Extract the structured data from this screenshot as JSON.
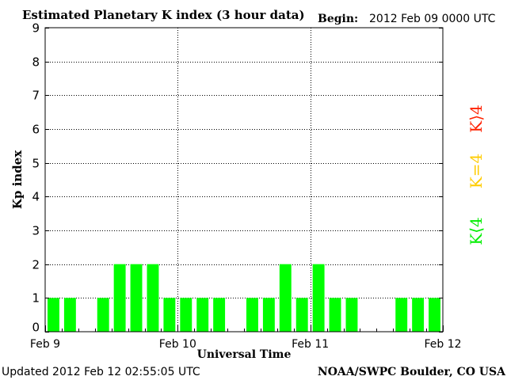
{
  "header": {
    "title": "Estimated Planetary K index (3 hour data)",
    "begin_label": "Begin:",
    "begin_value": "2012 Feb 09 0000 UTC"
  },
  "footer": {
    "updated": "Updated 2012 Feb 12 02:55:05 UTC",
    "source": "NOAA/SWPC Boulder, CO USA"
  },
  "legend": {
    "high": "K⟩4",
    "mid": "K=4",
    "low": "K⟨4"
  },
  "chart_data": {
    "type": "bar",
    "title": "Estimated Planetary K index (3 hour data)",
    "xlabel": "Universal Time",
    "ylabel": "Kp index",
    "ylim": [
      0,
      9
    ],
    "yticks": [
      0,
      1,
      2,
      3,
      4,
      5,
      6,
      7,
      8,
      9
    ],
    "xticks": [
      "Feb 9",
      "Feb 10",
      "Feb 11",
      "Feb 12"
    ],
    "bar_interval_hours": 3,
    "values": [
      1,
      1,
      null,
      1,
      2,
      2,
      2,
      1,
      1,
      1,
      1,
      null,
      1,
      1,
      2,
      1,
      2,
      1,
      1,
      null,
      null,
      1,
      1,
      1
    ],
    "colors": {
      "low": "#00ff00",
      "mid": "#ffcc00",
      "high": "#ff2200"
    },
    "grid": true
  }
}
